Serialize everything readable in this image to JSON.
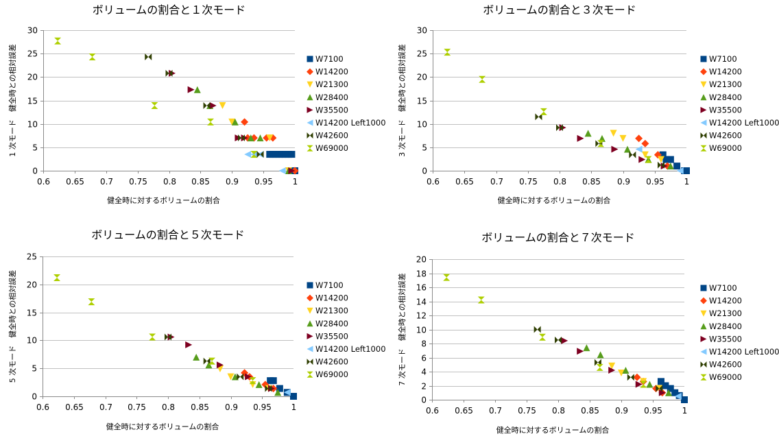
{
  "chart_data": [
    {
      "type": "scatter",
      "title": "ボリュームの割合と１次モード",
      "xlabel": "健全時に対するボリュームの割合",
      "ylabel": "1 次モード　健全時との相対誤差",
      "xlim": [
        0.6,
        1.0
      ],
      "xticks": [
        0.6,
        0.65,
        0.7,
        0.75,
        0.8,
        0.85,
        0.9,
        0.95,
        1
      ],
      "xtick_labels": [
        "0.6",
        "0.65",
        "0.7",
        "0.75",
        "0.8",
        "0.85",
        "0.9",
        "0.95",
        "1"
      ],
      "ylim": [
        0,
        30
      ],
      "yticks": [
        0,
        5,
        10,
        15,
        20,
        25,
        30
      ],
      "legend": "right",
      "series": [
        {
          "name": "W7100",
          "points": [
            [
              0.96,
              3.5
            ],
            [
              0.965,
              3.5
            ],
            [
              0.97,
              3.5
            ],
            [
              0.975,
              3.5
            ],
            [
              0.98,
              3.5
            ],
            [
              0.985,
              3.5
            ],
            [
              0.99,
              3.5
            ],
            [
              0.995,
              3.5
            ],
            [
              1.0,
              0
            ]
          ]
        },
        {
          "name": "W14200",
          "points": [
            [
              0.92,
              10.4
            ],
            [
              0.925,
              7.0
            ],
            [
              0.935,
              7.0
            ],
            [
              0.955,
              7.0
            ],
            [
              0.965,
              7.0
            ],
            [
              1.0,
              0
            ]
          ]
        },
        {
          "name": "W21300",
          "points": [
            [
              0.885,
              13.9
            ],
            [
              0.9,
              10.4
            ],
            [
              0.96,
              7.0
            ],
            [
              0.99,
              0
            ]
          ]
        },
        {
          "name": "W28400",
          "points": [
            [
              0.845,
              17.3
            ],
            [
              0.865,
              13.9
            ],
            [
              0.905,
              10.4
            ],
            [
              0.93,
              7.0
            ],
            [
              0.945,
              7.0
            ],
            [
              0.99,
              0
            ]
          ]
        },
        {
          "name": "W35500",
          "points": [
            [
              0.805,
              20.8
            ],
            [
              0.835,
              17.3
            ],
            [
              0.87,
              13.9
            ],
            [
              0.91,
              7.0
            ],
            [
              0.92,
              7.0
            ],
            [
              0.995,
              0
            ]
          ]
        },
        {
          "name": "W14200 Left1000",
          "points": [
            [
              0.935,
              3.5
            ],
            [
              0.945,
              3.5
            ],
            [
              0.925,
              3.5
            ],
            [
              0.98,
              0
            ]
          ]
        },
        {
          "name": "W42600",
          "points": [
            [
              0.767,
              24.3
            ],
            [
              0.8,
              20.8
            ],
            [
              0.86,
              13.9
            ],
            [
              0.915,
              7.0
            ],
            [
              0.945,
              3.5
            ]
          ]
        },
        {
          "name": "W69000",
          "points": [
            [
              0.623,
              27.7
            ],
            [
              0.678,
              24.3
            ],
            [
              0.777,
              13.9
            ],
            [
              0.866,
              10.4
            ],
            [
              0.935,
              3.5
            ]
          ]
        }
      ]
    },
    {
      "type": "scatter",
      "title": "ボリュームの割合と３次モード",
      "xlabel": "健全時に対するボリュームの割合",
      "ylabel": "3 次モード　健全時との相対誤差",
      "xlim": [
        0.6,
        1.0
      ],
      "xticks": [
        0.6,
        0.65,
        0.7,
        0.75,
        0.8,
        0.85,
        0.9,
        0.95,
        1
      ],
      "xtick_labels": [
        "0.6",
        "0.65",
        "0.7",
        "0.75",
        "0.8",
        "0.85",
        "0.9",
        "0.95",
        "1"
      ],
      "ylim": [
        0,
        30
      ],
      "yticks": [
        0,
        5,
        10,
        15,
        20,
        25,
        30
      ],
      "legend": "right",
      "series": [
        {
          "name": "W7100",
          "points": [
            [
              0.963,
              3.4
            ],
            [
              0.968,
              2.4
            ],
            [
              0.975,
              2.4
            ],
            [
              0.985,
              1.0
            ],
            [
              0.997,
              0
            ],
            [
              1.0,
              0
            ]
          ]
        },
        {
          "name": "W14200",
          "points": [
            [
              0.925,
              6.9
            ],
            [
              0.935,
              5.8
            ],
            [
              0.955,
              3.4
            ],
            [
              0.97,
              1.0
            ]
          ]
        },
        {
          "name": "W21300",
          "points": [
            [
              0.885,
              8.0
            ],
            [
              0.9,
              6.9
            ],
            [
              0.935,
              3.4
            ],
            [
              0.96,
              2.4
            ]
          ]
        },
        {
          "name": "W28400",
          "points": [
            [
              0.845,
              8.0
            ],
            [
              0.867,
              6.9
            ],
            [
              0.907,
              4.6
            ],
            [
              0.94,
              2.4
            ],
            [
              0.975,
              1.0
            ]
          ]
        },
        {
          "name": "W35500",
          "points": [
            [
              0.805,
              9.2
            ],
            [
              0.833,
              6.9
            ],
            [
              0.887,
              4.6
            ],
            [
              0.93,
              2.4
            ],
            [
              0.965,
              1.0
            ]
          ]
        },
        {
          "name": "W14200 Left1000",
          "points": [
            [
              0.925,
              4.6
            ],
            [
              0.99,
              0
            ]
          ]
        },
        {
          "name": "W42600",
          "points": [
            [
              0.767,
              11.5
            ],
            [
              0.8,
              9.2
            ],
            [
              0.862,
              5.8
            ],
            [
              0.915,
              3.4
            ],
            [
              0.96,
              1.2
            ]
          ]
        },
        {
          "name": "W69000",
          "points": [
            [
              0.623,
              25.3
            ],
            [
              0.678,
              19.5
            ],
            [
              0.775,
              12.6
            ],
            [
              0.865,
              5.8
            ],
            [
              0.94,
              2.4
            ]
          ]
        }
      ]
    },
    {
      "type": "scatter",
      "title": "ボリュームの割合と５次モード",
      "xlabel": "健全時に対するボリュームの割合",
      "ylabel": "5 次モード　健全時との相対誤差",
      "xlim": [
        0.6,
        1.0
      ],
      "xticks": [
        0.6,
        0.65,
        0.7,
        0.75,
        0.8,
        0.85,
        0.9,
        0.95,
        1
      ],
      "xtick_labels": [
        "0.6",
        "0.65",
        "0.7",
        "0.75",
        "0.8",
        "0.85",
        "0.9",
        "0.95",
        "1"
      ],
      "ylim": [
        0,
        25
      ],
      "yticks": [
        0,
        5,
        10,
        15,
        20,
        25
      ],
      "legend": "right",
      "series": [
        {
          "name": "W7100",
          "points": [
            [
              0.963,
              2.8
            ],
            [
              0.968,
              2.8
            ],
            [
              0.978,
              1.4
            ],
            [
              0.99,
              0.7
            ],
            [
              1.0,
              0
            ]
          ]
        },
        {
          "name": "W14200",
          "points": [
            [
              0.922,
              4.2
            ],
            [
              0.93,
              3.5
            ],
            [
              0.955,
              2.1
            ],
            [
              0.968,
              1.4
            ]
          ]
        },
        {
          "name": "W21300",
          "points": [
            [
              0.883,
              4.9
            ],
            [
              0.9,
              3.5
            ],
            [
              0.935,
              2.1
            ],
            [
              0.96,
              1.4
            ]
          ]
        },
        {
          "name": "W28400",
          "points": [
            [
              0.845,
              7.0
            ],
            [
              0.865,
              5.6
            ],
            [
              0.907,
              3.5
            ],
            [
              0.945,
              2.1
            ],
            [
              0.975,
              0.7
            ]
          ]
        },
        {
          "name": "W35500",
          "points": [
            [
              0.805,
              10.6
            ],
            [
              0.833,
              9.2
            ],
            [
              0.883,
              5.6
            ],
            [
              0.928,
              3.5
            ],
            [
              0.965,
              1.4
            ]
          ]
        },
        {
          "name": "W14200 Left1000",
          "points": [
            [
              0.99,
              0.7
            ]
          ]
        },
        {
          "name": "W42600",
          "points": [
            [
              0.8,
              10.6
            ],
            [
              0.862,
              6.3
            ],
            [
              0.915,
              3.5
            ],
            [
              0.96,
              1.4
            ]
          ]
        },
        {
          "name": "W69000",
          "points": [
            [
              0.623,
              21.2
            ],
            [
              0.678,
              16.9
            ],
            [
              0.775,
              10.6
            ],
            [
              0.87,
              6.3
            ],
            [
              0.935,
              2.8
            ]
          ]
        }
      ]
    },
    {
      "type": "scatter",
      "title": "ボリュームの割合と７次モード",
      "xlabel": "健全時に対するボリュームの割合",
      "ylabel": "7 次モード　健全時との相対誤差",
      "xlim": [
        0.6,
        1.0
      ],
      "xticks": [
        0.6,
        0.65,
        0.7,
        0.75,
        0.8,
        0.85,
        0.9,
        0.95,
        1
      ],
      "xtick_labels": [
        "0.6",
        "0.65",
        "0.7",
        "0.75",
        "0.8",
        "0.85",
        "0.9",
        "0.95",
        "1"
      ],
      "ylim": [
        0,
        20
      ],
      "yticks": [
        0,
        2,
        4,
        6,
        8,
        10,
        12,
        14,
        16,
        18,
        20
      ],
      "legend": "right",
      "series": [
        {
          "name": "W7100",
          "points": [
            [
              0.963,
              2.6
            ],
            [
              0.97,
              2.0
            ],
            [
              0.978,
              1.6
            ],
            [
              0.985,
              1.0
            ],
            [
              0.992,
              0.6
            ],
            [
              1.0,
              0
            ]
          ]
        },
        {
          "name": "W14200",
          "points": [
            [
              0.925,
              3.2
            ],
            [
              0.935,
              2.6
            ],
            [
              0.955,
              1.6
            ],
            [
              0.965,
              1.0
            ]
          ]
        },
        {
          "name": "W21300",
          "points": [
            [
              0.885,
              4.8
            ],
            [
              0.9,
              3.8
            ],
            [
              0.935,
              2.6
            ],
            [
              0.96,
              1.6
            ]
          ]
        },
        {
          "name": "W28400",
          "points": [
            [
              0.845,
              7.4
            ],
            [
              0.867,
              6.4
            ],
            [
              0.907,
              4.2
            ],
            [
              0.945,
              2.2
            ],
            [
              0.975,
              1.0
            ]
          ]
        },
        {
          "name": "W35500",
          "points": [
            [
              0.81,
              8.4
            ],
            [
              0.835,
              6.9
            ],
            [
              0.885,
              4.2
            ],
            [
              0.928,
              2.2
            ],
            [
              0.965,
              1.0
            ]
          ]
        },
        {
          "name": "W14200 Left1000",
          "points": [
            [
              0.99,
              0.5
            ]
          ]
        },
        {
          "name": "W42600",
          "points": [
            [
              0.767,
              10.0
            ],
            [
              0.8,
              8.5
            ],
            [
              0.863,
              5.3
            ],
            [
              0.915,
              3.2
            ],
            [
              0.96,
              1.6
            ]
          ]
        },
        {
          "name": "W69000",
          "points": [
            [
              0.623,
              17.4
            ],
            [
              0.678,
              14.2
            ],
            [
              0.775,
              8.9
            ],
            [
              0.866,
              4.6
            ],
            [
              0.935,
              2.2
            ]
          ]
        }
      ]
    }
  ],
  "series_style": [
    {
      "marker": "square",
      "color": "#004586"
    },
    {
      "marker": "diamond",
      "color": "#ff420e"
    },
    {
      "marker": "triangle-down",
      "color": "#ffd320"
    },
    {
      "marker": "triangle-up",
      "color": "#579d1c"
    },
    {
      "marker": "triangle-right",
      "color": "#7e0021"
    },
    {
      "marker": "triangle-left",
      "color": "#83caff"
    },
    {
      "marker": "bowtie",
      "color": "#314004"
    },
    {
      "marker": "hourglass",
      "color": "#aecf00"
    }
  ]
}
